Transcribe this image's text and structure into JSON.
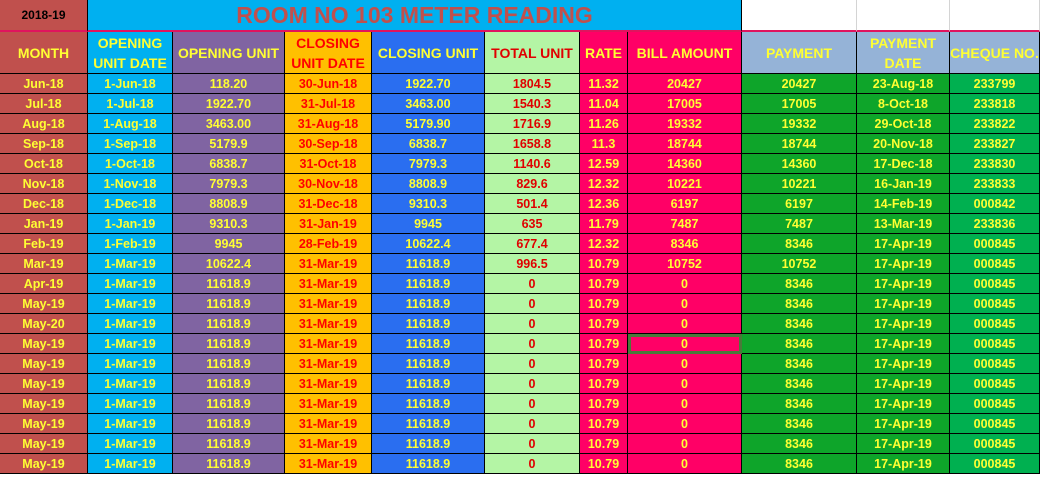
{
  "sheet": {
    "year": "2018-19",
    "title": "ROOM NO 103 METER READING",
    "headers": [
      "MONTH",
      "OPENING UNIT DATE",
      "OPENING UNIT",
      "CLOSING UNIT DATE",
      "CLOSING UNIT",
      "TOTAL UNIT",
      "RATE",
      "BILL AMOUNT",
      "PAYMENT",
      "PAYMENT DATE",
      "CHEQUE NO."
    ],
    "rows": [
      [
        "Jun-18",
        "1-Jun-18",
        "118.20",
        "30-Jun-18",
        "1922.70",
        "1804.5",
        "11.32",
        "20427",
        "20427",
        "23-Aug-18",
        "233799"
      ],
      [
        "Jul-18",
        "1-Jul-18",
        "1922.70",
        "31-Jul-18",
        "3463.00",
        "1540.3",
        "11.04",
        "17005",
        "17005",
        "8-Oct-18",
        "233818"
      ],
      [
        "Aug-18",
        "1-Aug-18",
        "3463.00",
        "31-Aug-18",
        "5179.90",
        "1716.9",
        "11.26",
        "19332",
        "19332",
        "29-Oct-18",
        "233822"
      ],
      [
        "Sep-18",
        "1-Sep-18",
        "5179.9",
        "30-Sep-18",
        "6838.7",
        "1658.8",
        "11.3",
        "18744",
        "18744",
        "20-Nov-18",
        "233827"
      ],
      [
        "Oct-18",
        "1-Oct-18",
        "6838.7",
        "31-Oct-18",
        "7979.3",
        "1140.6",
        "12.59",
        "14360",
        "14360",
        "17-Dec-18",
        "233830"
      ],
      [
        "Nov-18",
        "1-Nov-18",
        "7979.3",
        "30-Nov-18",
        "8808.9",
        "829.6",
        "12.32",
        "10221",
        "10221",
        "16-Jan-19",
        "233833"
      ],
      [
        "Dec-18",
        "1-Dec-18",
        "8808.9",
        "31-Dec-18",
        "9310.3",
        "501.4",
        "12.36",
        "6197",
        "6197",
        "14-Feb-19",
        "000842"
      ],
      [
        "Jan-19",
        "1-Jan-19",
        "9310.3",
        "31-Jan-19",
        "9945",
        "635",
        "11.79",
        "7487",
        "7487",
        "13-Mar-19",
        "233836"
      ],
      [
        "Feb-19",
        "1-Feb-19",
        "9945",
        "28-Feb-19",
        "10622.4",
        "677.4",
        "12.32",
        "8346",
        "8346",
        "17-Apr-19",
        "000845"
      ],
      [
        "Mar-19",
        "1-Mar-19",
        "10622.4",
        "31-Mar-19",
        "11618.9",
        "996.5",
        "10.79",
        "10752",
        "10752",
        "17-Apr-19",
        "000845"
      ],
      [
        "Apr-19",
        "1-Mar-19",
        "11618.9",
        "31-Mar-19",
        "11618.9",
        "0",
        "10.79",
        "0",
        "8346",
        "17-Apr-19",
        "000845"
      ],
      [
        "May-19",
        "1-Mar-19",
        "11618.9",
        "31-Mar-19",
        "11618.9",
        "0",
        "10.79",
        "0",
        "8346",
        "17-Apr-19",
        "000845"
      ],
      [
        "May-20",
        "1-Mar-19",
        "11618.9",
        "31-Mar-19",
        "11618.9",
        "0",
        "10.79",
        "0",
        "8346",
        "17-Apr-19",
        "000845"
      ],
      [
        "May-19",
        "1-Mar-19",
        "11618.9",
        "31-Mar-19",
        "11618.9",
        "0",
        "10.79",
        "0",
        "8346",
        "17-Apr-19",
        "000845"
      ],
      [
        "May-19",
        "1-Mar-19",
        "11618.9",
        "31-Mar-19",
        "11618.9",
        "0",
        "10.79",
        "0",
        "8346",
        "17-Apr-19",
        "000845"
      ],
      [
        "May-19",
        "1-Mar-19",
        "11618.9",
        "31-Mar-19",
        "11618.9",
        "0",
        "10.79",
        "0",
        "8346",
        "17-Apr-19",
        "000845"
      ],
      [
        "May-19",
        "1-Mar-19",
        "11618.9",
        "31-Mar-19",
        "11618.9",
        "0",
        "10.79",
        "0",
        "8346",
        "17-Apr-19",
        "000845"
      ],
      [
        "May-19",
        "1-Mar-19",
        "11618.9",
        "31-Mar-19",
        "11618.9",
        "0",
        "10.79",
        "0",
        "8346",
        "17-Apr-19",
        "000845"
      ],
      [
        "May-19",
        "1-Mar-19",
        "11618.9",
        "31-Mar-19",
        "11618.9",
        "0",
        "10.79",
        "0",
        "8346",
        "17-Apr-19",
        "000845"
      ],
      [
        "May-19",
        "1-Mar-19",
        "11618.9",
        "31-Mar-19",
        "11618.9",
        "0",
        "10.79",
        "0",
        "8346",
        "17-Apr-19",
        "000845"
      ]
    ],
    "selected_cell": {
      "row": 13,
      "col": 7
    }
  }
}
